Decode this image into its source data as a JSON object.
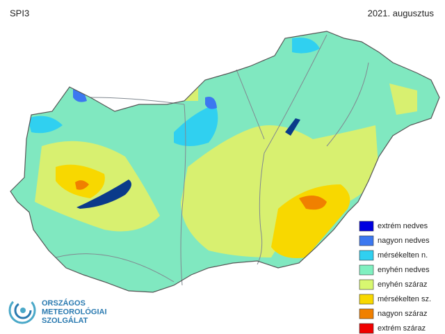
{
  "header": {
    "title": "SPI3",
    "date": "2021. augusztus"
  },
  "legend": [
    {
      "label": "extrém nedves",
      "color": "#0000e0"
    },
    {
      "label": "nagyon nedves",
      "color": "#3c78f0"
    },
    {
      "label": "mérsékelten n.",
      "color": "#30d0f0"
    },
    {
      "label": "enyhén nedves",
      "color": "#80f0c0"
    },
    {
      "label": "enyhén száraz",
      "color": "#d8f870"
    },
    {
      "label": "mérsékelten sz.",
      "color": "#f8d800"
    },
    {
      "label": "nagyon száraz",
      "color": "#f08000"
    },
    {
      "label": "extrém száraz",
      "color": "#f00000"
    }
  ],
  "logo": {
    "lines": [
      "ORSZÁGOS",
      "METEOROLÓGIAI",
      "SZOLGÁLAT"
    ]
  }
}
